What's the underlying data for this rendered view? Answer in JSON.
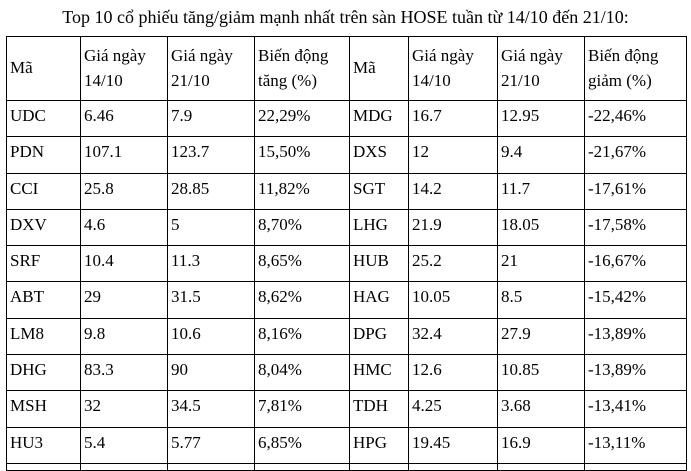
{
  "title": "Top 10 cổ phiếu tăng/giảm mạnh nhất trên sàn HOSE tuần từ 14/10 đến 21/10:",
  "table": {
    "headers": [
      "Mã",
      "Giá ngày 14/10",
      "Giá ngày 21/10",
      "Biến động tăng (%)",
      "Mã",
      "Giá ngày 14/10",
      "Giá ngày 21/10",
      "Biến động giảm (%)"
    ],
    "rows": [
      [
        "UDC",
        "6.46",
        "7.9",
        "22,29%",
        "MDG",
        "16.7",
        "12.95",
        "-22,46%"
      ],
      [
        "PDN",
        "107.1",
        "123.7",
        "15,50%",
        "DXS",
        "12",
        "9.4",
        "-21,67%"
      ],
      [
        "CCI",
        "25.8",
        "28.85",
        "11,82%",
        "SGT",
        "14.2",
        "11.7",
        "-17,61%"
      ],
      [
        "DXV",
        "4.6",
        "5",
        "8,70%",
        "LHG",
        "21.9",
        "18.05",
        "-17,58%"
      ],
      [
        "SRF",
        "10.4",
        "11.3",
        "8,65%",
        "HUB",
        "25.2",
        "21",
        "-16,67%"
      ],
      [
        "ABT",
        "29",
        "31.5",
        "8,62%",
        "HAG",
        "10.05",
        "8.5",
        "-15,42%"
      ],
      [
        "LM8",
        "9.8",
        "10.6",
        "8,16%",
        "DPG",
        "32.4",
        "27.9",
        "-13,89%"
      ],
      [
        "DHG",
        "83.3",
        "90",
        "8,04%",
        "HMC",
        "12.6",
        "10.85",
        "-13,89%"
      ],
      [
        "MSH",
        "32",
        "34.5",
        "7,81%",
        "TDH",
        "4.25",
        "3.68",
        "-13,41%"
      ],
      [
        "HU3",
        "5.4",
        "5.77",
        "6,85%",
        "HPG",
        "19.45",
        "16.9",
        "-13,11%"
      ]
    ]
  },
  "colors": {
    "text": "#000000",
    "border": "#000000",
    "background": "#ffffff"
  }
}
